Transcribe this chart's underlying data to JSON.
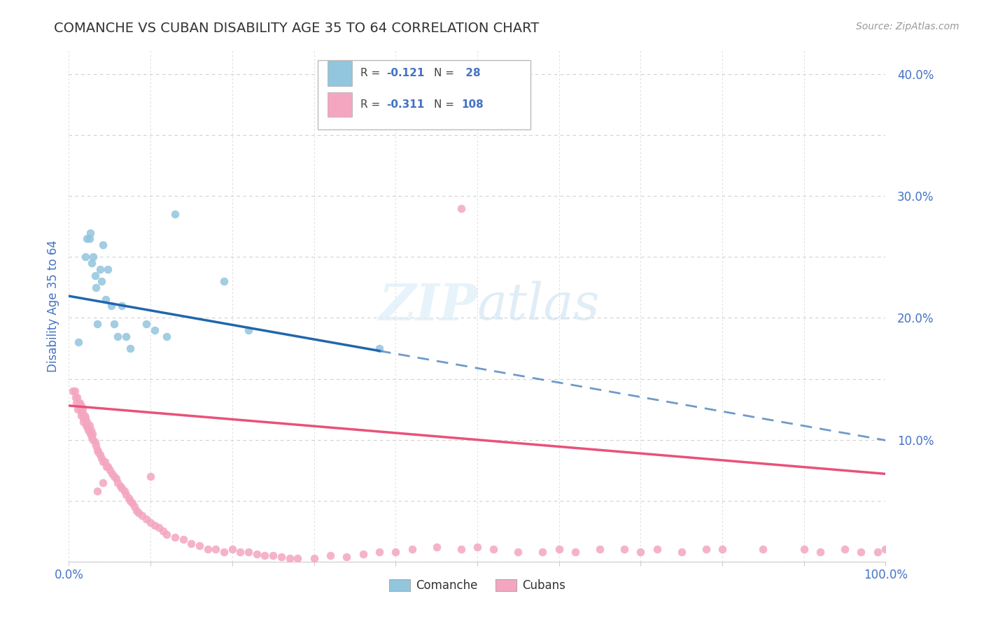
{
  "title": "COMANCHE VS CUBAN DISABILITY AGE 35 TO 64 CORRELATION CHART",
  "source_text": "Source: ZipAtlas.com",
  "ylabel": "Disability Age 35 to 64",
  "xlim": [
    0.0,
    1.0
  ],
  "ylim": [
    0.0,
    0.42
  ],
  "ytick_vals": [
    0.0,
    0.05,
    0.1,
    0.15,
    0.2,
    0.25,
    0.3,
    0.35,
    0.4
  ],
  "ytick_labels": [
    "",
    "",
    "10.0%",
    "",
    "20.0%",
    "",
    "30.0%",
    "",
    "40.0%"
  ],
  "xtick_vals": [
    0.0,
    0.1,
    0.2,
    0.3,
    0.4,
    0.5,
    0.6,
    0.7,
    0.8,
    0.9,
    1.0
  ],
  "xtick_labels": [
    "0.0%",
    "",
    "",
    "",
    "",
    "",
    "",
    "",
    "",
    "",
    "100.0%"
  ],
  "comanche_R": -0.121,
  "comanche_N": 28,
  "cuban_R": -0.311,
  "cuban_N": 108,
  "comanche_color": "#92c5de",
  "cuban_color": "#f4a6c0",
  "comanche_line_color": "#2166ac",
  "cuban_line_color": "#e8527a",
  "grid_color": "#d0d0d0",
  "background_color": "#ffffff",
  "title_color": "#333333",
  "axis_label_color": "#4472c4",
  "watermark_color": "#ddeeff",
  "comanche_x": [
    0.012,
    0.02,
    0.022,
    0.025,
    0.026,
    0.028,
    0.03,
    0.032,
    0.033,
    0.035,
    0.038,
    0.04,
    0.042,
    0.045,
    0.048,
    0.052,
    0.055,
    0.06,
    0.065,
    0.07,
    0.075,
    0.095,
    0.105,
    0.12,
    0.13,
    0.19,
    0.22,
    0.38
  ],
  "comanche_y": [
    0.18,
    0.25,
    0.265,
    0.265,
    0.27,
    0.245,
    0.25,
    0.235,
    0.225,
    0.195,
    0.24,
    0.23,
    0.26,
    0.215,
    0.24,
    0.21,
    0.195,
    0.185,
    0.21,
    0.185,
    0.175,
    0.195,
    0.19,
    0.185,
    0.285,
    0.23,
    0.19,
    0.175
  ],
  "cuban_x": [
    0.005,
    0.007,
    0.008,
    0.009,
    0.01,
    0.011,
    0.012,
    0.013,
    0.014,
    0.015,
    0.015,
    0.016,
    0.017,
    0.018,
    0.018,
    0.019,
    0.02,
    0.021,
    0.022,
    0.023,
    0.024,
    0.025,
    0.026,
    0.027,
    0.028,
    0.029,
    0.03,
    0.032,
    0.033,
    0.035,
    0.036,
    0.038,
    0.04,
    0.042,
    0.044,
    0.046,
    0.048,
    0.05,
    0.053,
    0.055,
    0.058,
    0.06,
    0.063,
    0.065,
    0.068,
    0.07,
    0.073,
    0.075,
    0.078,
    0.08,
    0.083,
    0.085,
    0.09,
    0.095,
    0.1,
    0.105,
    0.11,
    0.115,
    0.12,
    0.13,
    0.14,
    0.15,
    0.16,
    0.17,
    0.18,
    0.19,
    0.2,
    0.21,
    0.22,
    0.23,
    0.24,
    0.25,
    0.26,
    0.27,
    0.28,
    0.3,
    0.32,
    0.34,
    0.36,
    0.38,
    0.4,
    0.42,
    0.45,
    0.48,
    0.5,
    0.52,
    0.55,
    0.58,
    0.6,
    0.62,
    0.65,
    0.68,
    0.7,
    0.72,
    0.75,
    0.78,
    0.8,
    0.85,
    0.9,
    0.92,
    0.95,
    0.97,
    0.99,
    1.0,
    0.48,
    0.1,
    0.035,
    0.042
  ],
  "cuban_y": [
    0.14,
    0.14,
    0.135,
    0.13,
    0.135,
    0.125,
    0.13,
    0.13,
    0.125,
    0.128,
    0.12,
    0.122,
    0.125,
    0.118,
    0.115,
    0.12,
    0.118,
    0.112,
    0.115,
    0.11,
    0.108,
    0.112,
    0.105,
    0.108,
    0.102,
    0.105,
    0.1,
    0.098,
    0.095,
    0.092,
    0.09,
    0.088,
    0.085,
    0.082,
    0.082,
    0.078,
    0.078,
    0.075,
    0.072,
    0.07,
    0.068,
    0.065,
    0.062,
    0.06,
    0.058,
    0.055,
    0.052,
    0.05,
    0.048,
    0.045,
    0.042,
    0.04,
    0.038,
    0.035,
    0.032,
    0.03,
    0.028,
    0.025,
    0.022,
    0.02,
    0.018,
    0.015,
    0.013,
    0.01,
    0.01,
    0.008,
    0.01,
    0.008,
    0.008,
    0.006,
    0.005,
    0.005,
    0.004,
    0.003,
    0.003,
    0.003,
    0.005,
    0.004,
    0.006,
    0.008,
    0.008,
    0.01,
    0.012,
    0.01,
    0.012,
    0.01,
    0.008,
    0.008,
    0.01,
    0.008,
    0.01,
    0.01,
    0.008,
    0.01,
    0.008,
    0.01,
    0.01,
    0.01,
    0.01,
    0.008,
    0.01,
    0.008,
    0.008,
    0.01,
    0.29,
    0.07,
    0.058,
    0.065
  ]
}
